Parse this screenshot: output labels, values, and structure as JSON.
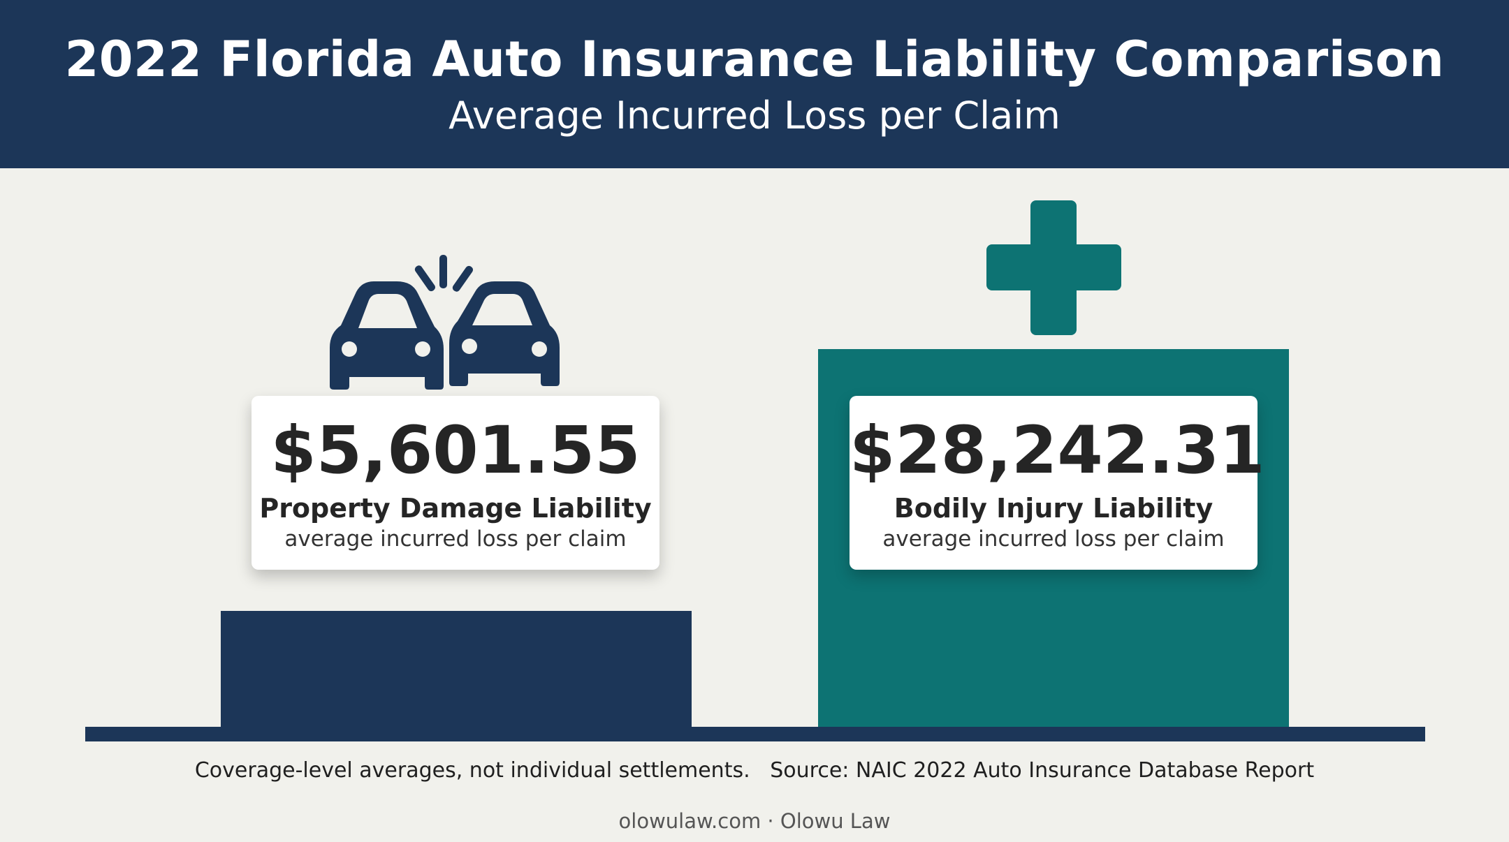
{
  "header": {
    "title": "2022 Florida Auto Insurance Liability Comparison",
    "subtitle": "Average Incurred Loss per Claim"
  },
  "colors": {
    "navy": "#1c3658",
    "teal": "#0d7373",
    "background": "#f1f1ec",
    "card": "#ffffff"
  },
  "icons": {
    "property_damage": "car-collision-icon",
    "bodily_injury": "medical-cross-icon"
  },
  "chart_data": {
    "type": "bar",
    "title": "2022 Florida Auto Insurance Liability Comparison",
    "subtitle": "Average Incurred Loss per Claim",
    "categories": [
      "Property Damage Liability",
      "Bodily Injury Liability"
    ],
    "values": [
      5601.55,
      28242.31
    ],
    "value_labels": [
      "$5,601.55",
      "$28,242.31"
    ],
    "category_sublabel": "average incurred loss per claim",
    "colors": [
      "#1c3658",
      "#0d7373"
    ],
    "grid": false,
    "legend": "none"
  },
  "cards": [
    {
      "value": "$5,601.55",
      "label": "Property Damage Liability",
      "sub": "average incurred loss per claim"
    },
    {
      "value": "$28,242.31",
      "label": "Bodily Injury Liability",
      "sub": "average incurred loss per claim"
    }
  ],
  "footer": {
    "note": "Coverage-level averages, not individual settlements.   Source: NAIC 2022 Auto Insurance Database Report",
    "credit": "olowulaw.com · Olowu Law"
  }
}
